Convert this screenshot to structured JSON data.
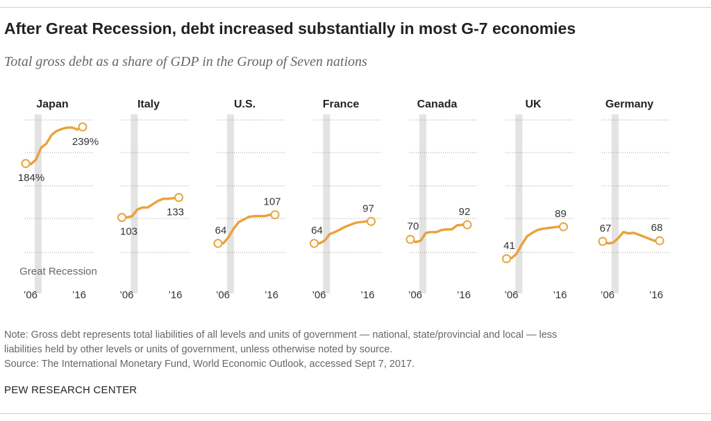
{
  "title": "After Great Recession, debt increased substantially in most G-7 economies",
  "subtitle": "Total gross debt as a share of GDP in the Group of Seven nations",
  "note_lines": [
    "Note: Gross debt represents total liabilities of all levels and units of government — national, state/provincial and local — less",
    "liabilities held by other levels or units of government, unless otherwise noted by source."
  ],
  "source": "Source: The International Monetary Fund, World Economic Outlook, accessed Sept 7, 2017.",
  "credit": "PEW RESEARCH CENTER",
  "colors": {
    "line": "#e8a33d",
    "recession_band": "#e3e3e3",
    "grid": "#9a9a9a",
    "text": "#333333"
  },
  "chart_data": {
    "type": "line",
    "x_tick_labels": [
      "’06",
      "’16"
    ],
    "recession_label": "Great Recession",
    "recession_years": [
      2008,
      2009
    ],
    "x": [
      2006,
      2007,
      2008,
      2009,
      2010,
      2011,
      2012,
      2013,
      2014,
      2015,
      2016,
      2017
    ],
    "series": [
      {
        "name": "Japan",
        "values": [
          184,
          183,
          190,
          208,
          214,
          227,
          233,
          236,
          238,
          238,
          235,
          239
        ],
        "first_label": "184%",
        "last_label": "239%"
      },
      {
        "name": "Italy",
        "values": [
          103,
          103,
          105,
          115,
          118,
          118,
          123,
          128,
          131,
          131,
          132,
          133
        ],
        "first_label": "103",
        "last_label": "133"
      },
      {
        "name": "U.S.",
        "values": [
          64,
          64,
          73,
          86,
          96,
          100,
          104,
          105,
          105,
          105,
          107,
          107
        ],
        "first_label": "64",
        "last_label": "107"
      },
      {
        "name": "France",
        "values": [
          64,
          64,
          68,
          78,
          81,
          85,
          89,
          92,
          95,
          96,
          97,
          97
        ],
        "first_label": "64",
        "last_label": "97"
      },
      {
        "name": "Canada",
        "values": [
          70,
          66,
          68,
          80,
          81,
          81,
          84,
          85,
          85,
          91,
          92,
          92
        ],
        "first_label": "70",
        "last_label": "92"
      },
      {
        "name": "UK",
        "values": [
          41,
          42,
          49,
          63,
          75,
          80,
          84,
          86,
          87,
          88,
          89,
          89
        ],
        "first_label": "41",
        "last_label": "89"
      },
      {
        "name": "Germany",
        "values": [
          67,
          64,
          65,
          72,
          81,
          79,
          80,
          77,
          74,
          71,
          68,
          68
        ],
        "first_label": "67",
        "last_label": "68"
      }
    ]
  }
}
